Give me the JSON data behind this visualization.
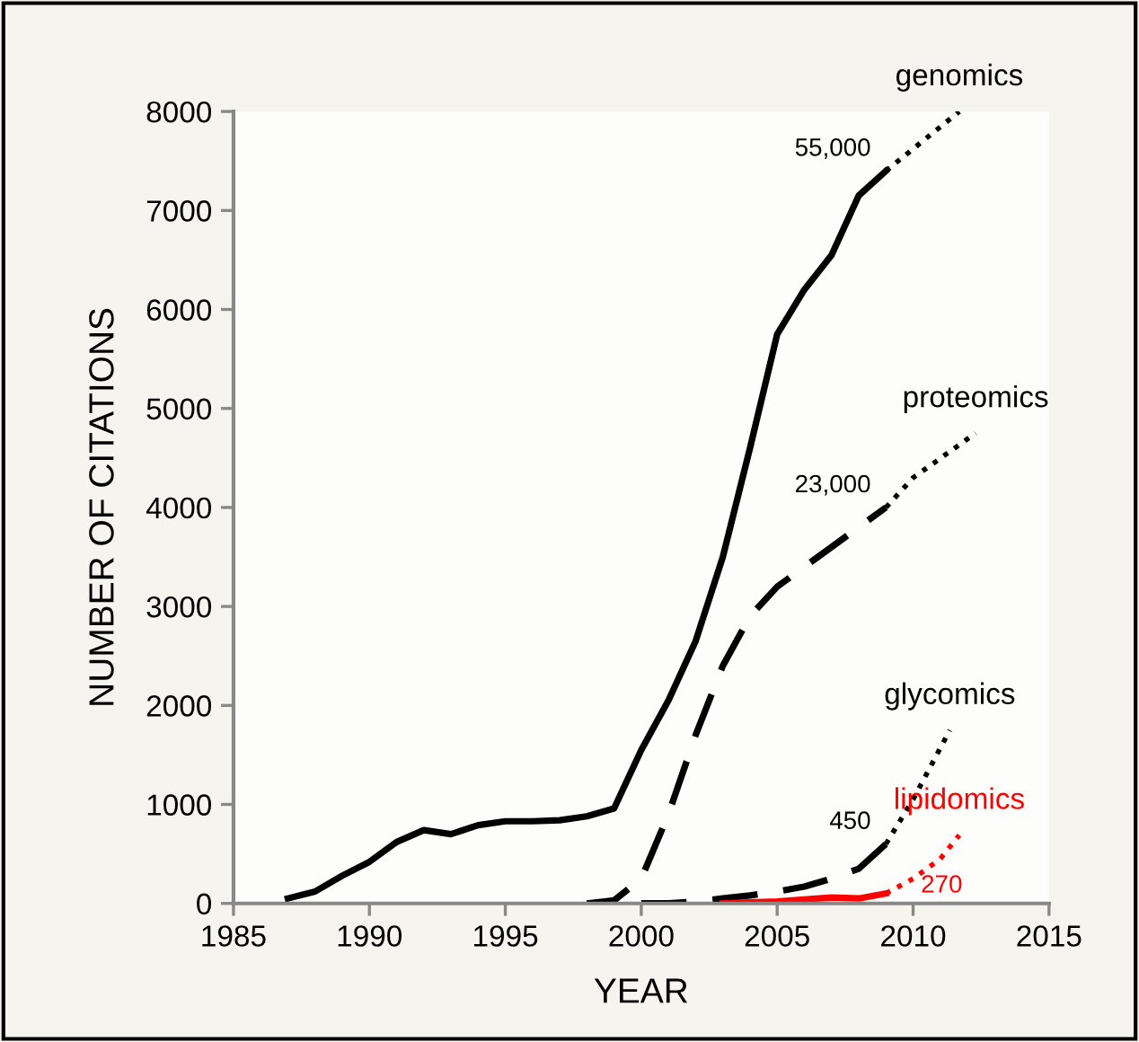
{
  "chart_data": {
    "type": "line",
    "xlabel": "YEAR",
    "ylabel": "NUMBER OF CITATIONS",
    "xlim": [
      1985,
      2015
    ],
    "xticks": [
      1985,
      1990,
      1995,
      2000,
      2005,
      2010,
      2015
    ],
    "annotations": [
      "55,000",
      "23,000",
      "450",
      "270"
    ],
    "ylim": [
      0,
      8000
    ],
    "yticks": [
      0,
      1000,
      2000,
      3000,
      4000,
      5000,
      6000,
      7000,
      8000
    ],
    "grid": false,
    "legend": false,
    "marker": "none",
    "series": [
      {
        "name": "genomics",
        "color": "#000000",
        "line_style": "solid",
        "x": [
          1987,
          1988,
          1989,
          1990,
          1991,
          1992,
          1993,
          1994,
          1995,
          1996,
          1997,
          1998,
          1999,
          2000,
          2001,
          2002,
          2003,
          2004,
          2005,
          2006,
          2007,
          2008,
          2009
        ],
        "values": [
          50,
          120,
          280,
          420,
          620,
          740,
          700,
          790,
          830,
          830,
          840,
          880,
          960,
          1550,
          2050,
          2650,
          3500,
          4600,
          5750,
          6200,
          6550,
          7150,
          7400
        ]
      },
      {
        "color": "#000000",
        "line_style": "dotted",
        "x": [
          2009,
          2011.7
        ],
        "values": [
          7400,
          8000
        ]
      },
      {
        "name": "proteomics",
        "color": "#000000",
        "line_style": "dashed",
        "x": [
          1998,
          1999,
          2000,
          2001,
          2002,
          2003,
          2004,
          2005,
          2006,
          2007,
          2008,
          2009
        ],
        "values": [
          0,
          30,
          250,
          900,
          1700,
          2400,
          2900,
          3200,
          3400,
          3600,
          3800,
          4000
        ]
      },
      {
        "color": "#000000",
        "line_style": "dotted",
        "x": [
          2009,
          2010,
          2012.3
        ],
        "values": [
          4000,
          4300,
          4750
        ]
      },
      {
        "name": "glycomics",
        "color": "#000000",
        "line_style": "dashed",
        "x": [
          2000,
          2001,
          2002,
          2003,
          2004,
          2005,
          2006,
          2007,
          2008,
          2009
        ],
        "values": [
          0,
          0,
          20,
          50,
          80,
          120,
          170,
          250,
          350,
          600
        ]
      },
      {
        "color": "#000000",
        "line_style": "dotted",
        "x": [
          2009,
          2010,
          2011.35
        ],
        "values": [
          600,
          1050,
          1750
        ]
      },
      {
        "name": "lipidomics",
        "color": "#ff0000",
        "line_style": "solid",
        "x": [
          2003,
          2005,
          2007,
          2008,
          2009
        ],
        "values": [
          0,
          20,
          60,
          50,
          100
        ]
      },
      {
        "color": "#ff0000",
        "line_style": "dotted",
        "x": [
          2009,
          2010,
          2011,
          2011.7
        ],
        "values": [
          100,
          250,
          450,
          690
        ]
      }
    ]
  }
}
